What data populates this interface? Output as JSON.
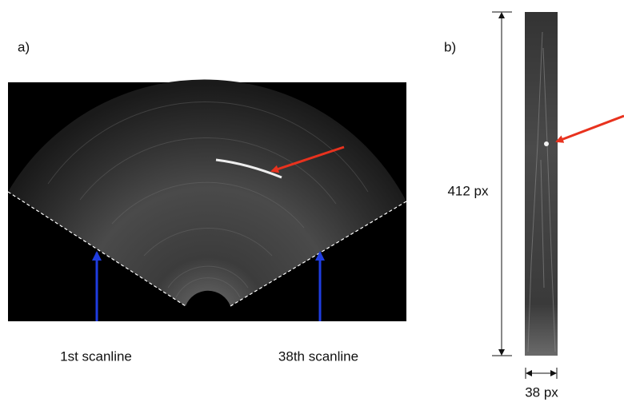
{
  "labels": {
    "a": "a)",
    "b": "b)"
  },
  "scanlines": {
    "first": "1st scanline",
    "last": "38th scanline"
  },
  "dimensions": {
    "height": "412 px",
    "width": "38 px"
  }
}
